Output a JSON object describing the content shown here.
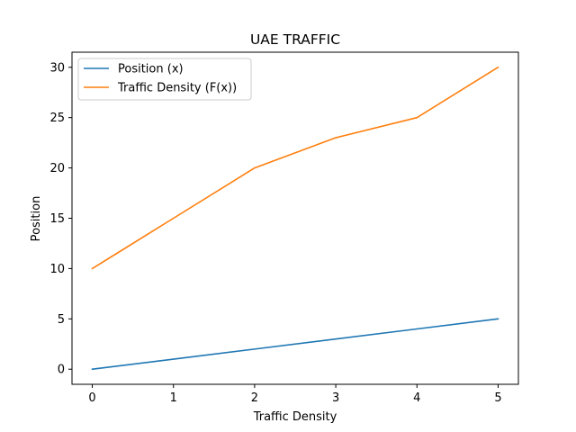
{
  "chart_data": {
    "type": "line",
    "title": "UAE TRAFFIC",
    "xlabel": "Traffic Density",
    "ylabel": "Position",
    "x": [
      0,
      1,
      2,
      3,
      4,
      5
    ],
    "xlim": [
      -0.25,
      5.25
    ],
    "ylim": [
      -1.5,
      31.5
    ],
    "xticks": [
      "0",
      "1",
      "2",
      "3",
      "4",
      "5"
    ],
    "yticks": [
      "0",
      "5",
      "10",
      "15",
      "20",
      "25",
      "30"
    ],
    "grid": false,
    "legend_position": "top-left",
    "series": [
      {
        "name": "Position (x)",
        "color": "#1f77b4",
        "values": [
          0,
          1,
          2,
          3,
          4,
          5
        ]
      },
      {
        "name": "Traffic Density (F(x))",
        "color": "#ff7f0e",
        "values": [
          10,
          15,
          20,
          23,
          25,
          30
        ]
      }
    ]
  }
}
